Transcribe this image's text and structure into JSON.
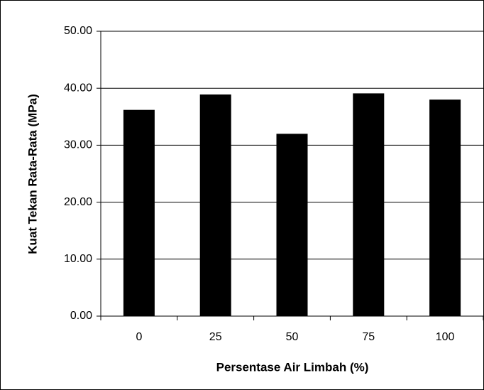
{
  "chart_data": {
    "type": "bar",
    "x_label": "Persentase Air Limbah (%)",
    "y_label": "Kuat Tekan Rata-Rata (MPa)",
    "categories": [
      "0",
      "25",
      "50",
      "75",
      "100"
    ],
    "values": [
      36.2,
      38.9,
      32.0,
      39.1,
      38.0
    ],
    "color": "#000000",
    "ylim": [
      0,
      50
    ],
    "yticks": [
      {
        "value": 0,
        "label": "0.00"
      },
      {
        "value": 10,
        "label": "10.00"
      },
      {
        "value": 20,
        "label": "20.00"
      },
      {
        "value": 30,
        "label": "30.00"
      },
      {
        "value": 40,
        "label": "40.00"
      },
      {
        "value": 50,
        "label": "50.00"
      }
    ],
    "grid": true
  }
}
